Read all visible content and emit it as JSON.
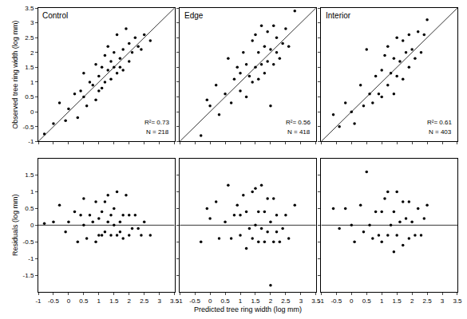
{
  "chart_data": [
    {
      "type": "scatter",
      "title": "Control",
      "ylabel": "Observed tree ring width (log mm)",
      "x": [
        -0.8,
        -0.5,
        -0.3,
        -0.1,
        0.0,
        0.2,
        0.3,
        0.4,
        0.5,
        0.5,
        0.6,
        0.7,
        0.8,
        0.9,
        0.9,
        1.0,
        1.0,
        1.1,
        1.1,
        1.2,
        1.2,
        1.3,
        1.3,
        1.4,
        1.4,
        1.5,
        1.5,
        1.6,
        1.6,
        1.7,
        1.7,
        1.8,
        1.8,
        1.9,
        2.0,
        2.0,
        2.1,
        2.2,
        2.3,
        2.4,
        2.5,
        2.7
      ],
      "values": [
        -0.75,
        -0.4,
        0.3,
        -0.3,
        0.1,
        0.6,
        -0.2,
        0.7,
        0.5,
        1.3,
        0.2,
        1.0,
        0.9,
        0.4,
        1.6,
        1.2,
        0.7,
        1.5,
        0.8,
        1.0,
        1.9,
        1.4,
        2.2,
        1.1,
        1.7,
        1.5,
        2.0,
        1.3,
        2.6,
        1.8,
        1.5,
        2.1,
        1.4,
        2.8,
        1.7,
        2.3,
        2.0,
        2.5,
        2.2,
        2.1,
        2.6,
        2.4
      ],
      "xlim": [
        -1,
        3.5
      ],
      "ylim": [
        -1,
        3.5
      ],
      "xticks": [
        -1,
        -0.5,
        0,
        0.5,
        1,
        1.5,
        2,
        2.5,
        3,
        3.5
      ],
      "yticks": [
        -1,
        -0.5,
        0,
        0.5,
        1,
        1.5,
        2,
        2.5,
        3,
        3.5
      ],
      "annotations": [
        "R²= 0.73",
        "N = 218"
      ],
      "reference_line": {
        "x": [
          -1,
          3.5
        ],
        "y": [
          -1,
          3.5
        ]
      },
      "tick_labels": "y",
      "marker": "circle",
      "color": "#000000",
      "grid": false
    },
    {
      "type": "scatter",
      "title": "Edge",
      "x": [
        -0.3,
        -0.1,
        0.0,
        0.2,
        0.3,
        0.5,
        0.6,
        0.7,
        0.8,
        0.9,
        1.0,
        1.0,
        1.1,
        1.2,
        1.2,
        1.3,
        1.4,
        1.4,
        1.5,
        1.5,
        1.6,
        1.6,
        1.7,
        1.7,
        1.8,
        1.8,
        1.9,
        1.9,
        2.0,
        2.0,
        2.1,
        2.1,
        2.2,
        2.2,
        2.3,
        2.4,
        2.5,
        2.6,
        2.8
      ],
      "values": [
        -0.8,
        0.4,
        0.2,
        0.9,
        -0.1,
        0.6,
        1.8,
        0.3,
        1.1,
        1.5,
        0.7,
        1.3,
        2.0,
        0.5,
        1.6,
        1.2,
        2.4,
        1.0,
        1.5,
        2.6,
        1.1,
        2.0,
        1.6,
        2.9,
        1.3,
        2.2,
        1.7,
        2.7,
        0.2,
        2.1,
        1.6,
        2.9,
        2.0,
        2.5,
        1.8,
        2.3,
        2.8,
        2.2,
        3.4
      ],
      "xlim": [
        -1,
        3.5
      ],
      "ylim": [
        -1,
        3.5
      ],
      "xticks": [
        -1,
        -0.5,
        0,
        0.5,
        1,
        1.5,
        2,
        2.5,
        3,
        3.5
      ],
      "yticks": [
        -1,
        -0.5,
        0,
        0.5,
        1,
        1.5,
        2,
        2.5,
        3,
        3.5
      ],
      "annotations": [
        "R²= 0.56",
        "N = 418"
      ],
      "reference_line": {
        "x": [
          -1,
          3.5
        ],
        "y": [
          -1,
          3.5
        ]
      },
      "tick_labels": false,
      "marker": "circle",
      "color": "#000000",
      "grid": false
    },
    {
      "type": "scatter",
      "title": "Interior",
      "x": [
        -0.6,
        -0.4,
        -0.2,
        0.0,
        0.1,
        0.3,
        0.4,
        0.5,
        0.6,
        0.7,
        0.8,
        0.9,
        1.0,
        1.0,
        1.1,
        1.2,
        1.2,
        1.3,
        1.4,
        1.4,
        1.5,
        1.5,
        1.6,
        1.7,
        1.7,
        1.8,
        1.9,
        1.9,
        2.0,
        2.1,
        2.2,
        2.3,
        2.4,
        2.5
      ],
      "values": [
        -0.1,
        -0.5,
        0.3,
        0.0,
        -0.4,
        0.9,
        0.2,
        2.1,
        0.6,
        0.3,
        1.2,
        0.6,
        1.4,
        0.5,
        1.9,
        0.9,
        2.2,
        1.3,
        0.6,
        1.8,
        1.2,
        2.5,
        1.7,
        1.1,
        2.4,
        2.0,
        1.5,
        2.6,
        2.1,
        1.8,
        2.7,
        2.0,
        2.6,
        3.1
      ],
      "xlim": [
        -1,
        3.5
      ],
      "ylim": [
        -1,
        3.5
      ],
      "xticks": [
        -1,
        -0.5,
        0,
        0.5,
        1,
        1.5,
        2,
        2.5,
        3,
        3.5
      ],
      "yticks": [
        -1,
        -0.5,
        0,
        0.5,
        1,
        1.5,
        2,
        2.5,
        3,
        3.5
      ],
      "annotations": [
        "R²= 0.61",
        "N = 403"
      ],
      "reference_line": {
        "x": [
          -1,
          3.5
        ],
        "y": [
          -1,
          3.5
        ]
      },
      "tick_labels": false,
      "marker": "circle",
      "color": "#000000",
      "grid": false
    },
    {
      "type": "scatter",
      "ylabel": "Residuals (log mm)",
      "x": [
        -0.8,
        -0.5,
        -0.3,
        -0.1,
        0.0,
        0.2,
        0.3,
        0.4,
        0.5,
        0.5,
        0.6,
        0.7,
        0.8,
        0.9,
        0.9,
        1.0,
        1.0,
        1.1,
        1.1,
        1.2,
        1.2,
        1.3,
        1.3,
        1.4,
        1.4,
        1.5,
        1.5,
        1.6,
        1.6,
        1.7,
        1.7,
        1.8,
        1.8,
        1.9,
        2.0,
        2.0,
        2.1,
        2.2,
        2.3,
        2.4,
        2.5,
        2.7
      ],
      "values": [
        0.05,
        0.1,
        0.6,
        -0.2,
        0.1,
        0.4,
        -0.5,
        0.3,
        0,
        0.8,
        -0.4,
        0.3,
        0.1,
        -0.5,
        0.7,
        0.2,
        -0.3,
        0.4,
        -0.3,
        -0.2,
        0.7,
        0.1,
        0.9,
        -0.3,
        0.3,
        0,
        0.5,
        -0.3,
        1.0,
        0.1,
        -0.2,
        0.3,
        -0.4,
        0.9,
        -0.3,
        0.3,
        -0.1,
        0.3,
        -0.1,
        -0.3,
        0.1,
        -0.3
      ],
      "xlim": [
        -1,
        3.5
      ],
      "ylim": [
        -2,
        2
      ],
      "xticks": [
        -1,
        -0.5,
        0,
        0.5,
        1,
        1.5,
        2,
        2.5,
        3,
        3.5
      ],
      "yticks": [
        -1.5,
        -1,
        -0.5,
        0,
        0.5,
        1,
        1.5
      ],
      "reference_line": {
        "x": [
          -1,
          3.5
        ],
        "y": [
          0,
          0
        ]
      },
      "tick_labels": true,
      "marker": "circle",
      "color": "#000000",
      "grid": false
    },
    {
      "type": "scatter",
      "xlabel": "Predicted tree ring width (log mm)",
      "x": [
        -0.3,
        -0.1,
        0.0,
        0.2,
        0.3,
        0.5,
        0.6,
        0.7,
        0.8,
        0.9,
        1.0,
        1.0,
        1.1,
        1.2,
        1.2,
        1.3,
        1.4,
        1.4,
        1.5,
        1.5,
        1.6,
        1.6,
        1.7,
        1.7,
        1.8,
        1.8,
        1.9,
        1.9,
        2.0,
        2.0,
        2.1,
        2.1,
        2.2,
        2.2,
        2.3,
        2.4,
        2.5,
        2.6,
        2.8
      ],
      "values": [
        -0.5,
        0.5,
        0.2,
        0.7,
        -0.4,
        0.1,
        1.2,
        -0.4,
        0.3,
        0.6,
        -0.3,
        0.3,
        0.9,
        -0.7,
        0.4,
        -0.1,
        1.0,
        -0.4,
        0,
        1.1,
        -0.5,
        0.4,
        -0.1,
        1.2,
        -0.5,
        0.4,
        -0.2,
        0.8,
        -1.8,
        0.1,
        -0.5,
        0.8,
        -0.2,
        0.3,
        -0.5,
        -0.1,
        0.3,
        -0.4,
        0.6
      ],
      "xlim": [
        -1,
        3.5
      ],
      "ylim": [
        -2,
        2
      ],
      "xticks": [
        -1,
        -0.5,
        0,
        0.5,
        1,
        1.5,
        2,
        2.5,
        3,
        3.5
      ],
      "yticks": [
        -1.5,
        -1,
        -0.5,
        0,
        0.5,
        1,
        1.5
      ],
      "reference_line": {
        "x": [
          -1,
          3.5
        ],
        "y": [
          0,
          0
        ]
      },
      "tick_labels": "x",
      "marker": "circle",
      "color": "#000000",
      "grid": false
    },
    {
      "type": "scatter",
      "x": [
        -0.6,
        -0.4,
        -0.2,
        0.0,
        0.1,
        0.3,
        0.4,
        0.5,
        0.6,
        0.7,
        0.8,
        0.9,
        1.0,
        1.0,
        1.1,
        1.2,
        1.2,
        1.3,
        1.4,
        1.4,
        1.5,
        1.5,
        1.6,
        1.7,
        1.7,
        1.8,
        1.9,
        1.9,
        2.0,
        2.1,
        2.2,
        2.3,
        2.4,
        2.5
      ],
      "values": [
        0.5,
        -0.1,
        0.5,
        0,
        -0.5,
        0.6,
        -0.2,
        1.6,
        0,
        -0.4,
        0.4,
        -0.3,
        0.4,
        -0.5,
        0.8,
        -0.3,
        1.0,
        0,
        -0.8,
        0.4,
        -0.3,
        1.0,
        0.1,
        -0.6,
        0.7,
        0.2,
        -0.4,
        0.7,
        0.1,
        -0.3,
        0.5,
        -0.3,
        0.2,
        0.6
      ],
      "xlim": [
        -1,
        3.5
      ],
      "ylim": [
        -2,
        2
      ],
      "xticks": [
        -1,
        -0.5,
        0,
        0.5,
        1,
        1.5,
        2,
        2.5,
        3,
        3.5
      ],
      "yticks": [
        -1.5,
        -1,
        -0.5,
        0,
        0.5,
        1,
        1.5
      ],
      "reference_line": {
        "x": [
          -1,
          3.5
        ],
        "y": [
          0,
          0
        ]
      },
      "tick_labels": "x",
      "marker": "circle",
      "color": "#000000",
      "grid": false
    }
  ]
}
